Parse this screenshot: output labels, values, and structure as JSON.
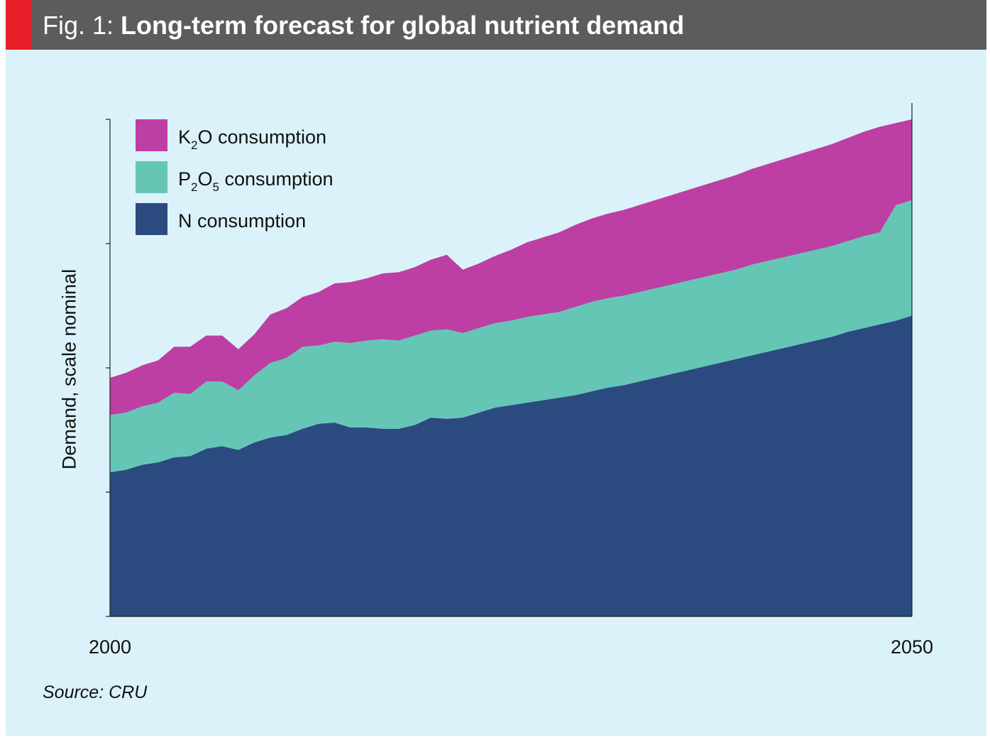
{
  "header": {
    "prefix": "Fig. 1: ",
    "title": "Long-term forecast for global nutrient demand"
  },
  "source": "Source: CRU",
  "colors": {
    "background": "#dbf2fa",
    "title_bar": "#5d5b5c",
    "accent": "#e8202a",
    "k2o": "#bd3fa3",
    "p2o5": "#66c6b6",
    "n": "#2b4b80"
  },
  "chart_data": {
    "type": "area",
    "stacked": true,
    "ylabel": "Demand, scale nominal",
    "xlabel": "",
    "x_ticks": [
      "2000",
      "2050"
    ],
    "xlim": [
      2000,
      2050
    ],
    "ylim": [
      0,
      4
    ],
    "y_ticks_labeled": false,
    "grid": false,
    "legend_position": "top-left",
    "x": [
      2000,
      2001,
      2002,
      2003,
      2004,
      2005,
      2006,
      2007,
      2008,
      2009,
      2010,
      2011,
      2012,
      2013,
      2014,
      2015,
      2016,
      2017,
      2018,
      2019,
      2020,
      2021,
      2022,
      2023,
      2024,
      2025,
      2026,
      2027,
      2028,
      2029,
      2030,
      2031,
      2032,
      2033,
      2034,
      2035,
      2036,
      2037,
      2038,
      2039,
      2040,
      2041,
      2042,
      2043,
      2044,
      2045,
      2046,
      2047,
      2048,
      2049,
      2050
    ],
    "series": [
      {
        "name": "N consumption",
        "key": "n",
        "values": [
          1.16,
          1.18,
          1.22,
          1.24,
          1.28,
          1.29,
          1.35,
          1.37,
          1.34,
          1.4,
          1.44,
          1.46,
          1.51,
          1.55,
          1.56,
          1.52,
          1.52,
          1.51,
          1.51,
          1.54,
          1.6,
          1.59,
          1.6,
          1.64,
          1.68,
          1.7,
          1.72,
          1.74,
          1.76,
          1.78,
          1.81,
          1.84,
          1.86,
          1.89,
          1.92,
          1.95,
          1.98,
          2.01,
          2.04,
          2.07,
          2.1,
          2.13,
          2.16,
          2.19,
          2.22,
          2.25,
          2.29,
          2.32,
          2.35,
          2.38,
          2.42
        ]
      },
      {
        "name": "P2O5 consumption",
        "key": "p2o5",
        "values": [
          0.46,
          0.46,
          0.47,
          0.48,
          0.52,
          0.5,
          0.54,
          0.52,
          0.48,
          0.54,
          0.6,
          0.62,
          0.66,
          0.63,
          0.65,
          0.68,
          0.7,
          0.72,
          0.71,
          0.72,
          0.7,
          0.72,
          0.68,
          0.68,
          0.68,
          0.68,
          0.69,
          0.69,
          0.69,
          0.71,
          0.72,
          0.72,
          0.72,
          0.72,
          0.72,
          0.72,
          0.72,
          0.72,
          0.72,
          0.72,
          0.73,
          0.73,
          0.73,
          0.73,
          0.73,
          0.73,
          0.73,
          0.74,
          0.74,
          0.93,
          0.93
        ]
      },
      {
        "name": "K2O consumption",
        "key": "k2o",
        "values": [
          0.3,
          0.32,
          0.33,
          0.34,
          0.37,
          0.38,
          0.37,
          0.37,
          0.33,
          0.33,
          0.39,
          0.4,
          0.4,
          0.43,
          0.47,
          0.49,
          0.5,
          0.53,
          0.55,
          0.55,
          0.57,
          0.6,
          0.51,
          0.52,
          0.54,
          0.57,
          0.6,
          0.62,
          0.64,
          0.66,
          0.67,
          0.68,
          0.69,
          0.7,
          0.71,
          0.72,
          0.73,
          0.74,
          0.75,
          0.76,
          0.77,
          0.78,
          0.79,
          0.8,
          0.81,
          0.82,
          0.83,
          0.84,
          0.85,
          0.66,
          0.65
        ]
      }
    ],
    "legend": [
      {
        "key": "k2o",
        "label": "K",
        "sub1": "2",
        "label2": "O consumption",
        "sub2": ""
      },
      {
        "key": "p2o5",
        "label": "P",
        "sub1": "2",
        "label2": "O",
        "sub2": "5",
        "label3": " consumption"
      },
      {
        "key": "n",
        "label": "N consumption",
        "sub1": "",
        "label2": "",
        "sub2": ""
      }
    ]
  }
}
